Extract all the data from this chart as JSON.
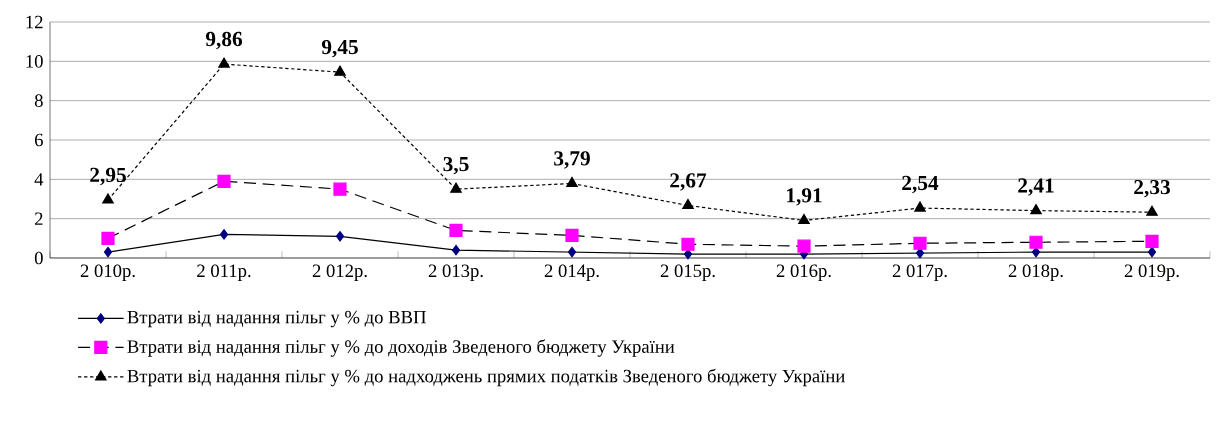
{
  "chart_data": {
    "type": "line",
    "categories": [
      "2 010р.",
      "2 011р.",
      "2 012р.",
      "2 013р.",
      "2 014р.",
      "2 015р.",
      "2 016р.",
      "2 017р.",
      "2 018р.",
      "2 019р."
    ],
    "ylim": [
      0,
      12
    ],
    "yticks": [
      0,
      2,
      4,
      6,
      8,
      10,
      12
    ],
    "grid": "y",
    "legend": "bottom",
    "series": [
      {
        "name": "Втрати від надання пільг у  % до ВВП",
        "color": "#000080",
        "marker": "diamond",
        "line_style": "solid",
        "values": [
          0.3,
          1.2,
          1.1,
          0.4,
          0.3,
          0.2,
          0.2,
          0.25,
          0.3,
          0.3
        ]
      },
      {
        "name": "Втрати від надання пільг у  % до доходів Зведеного бюджету України",
        "color": "#ff00ff",
        "marker": "square",
        "line_style": "dashed",
        "values": [
          1.0,
          3.9,
          3.5,
          1.4,
          1.15,
          0.7,
          0.6,
          0.75,
          0.8,
          0.85
        ]
      },
      {
        "name": "Втрати від надання пільг у % до надходжень прямих податків Зведеного бюджету України",
        "color": "#000000",
        "marker": "triangle",
        "line_style": "dotted",
        "values": [
          2.95,
          9.86,
          9.45,
          3.5,
          3.79,
          2.67,
          1.91,
          2.54,
          2.41,
          2.33
        ],
        "value_labels": [
          "2,95",
          "9,86",
          "9,45",
          "3,5",
          "3,79",
          "2,67",
          "1,91",
          "2,54",
          "2,41",
          "2,33"
        ]
      }
    ]
  }
}
